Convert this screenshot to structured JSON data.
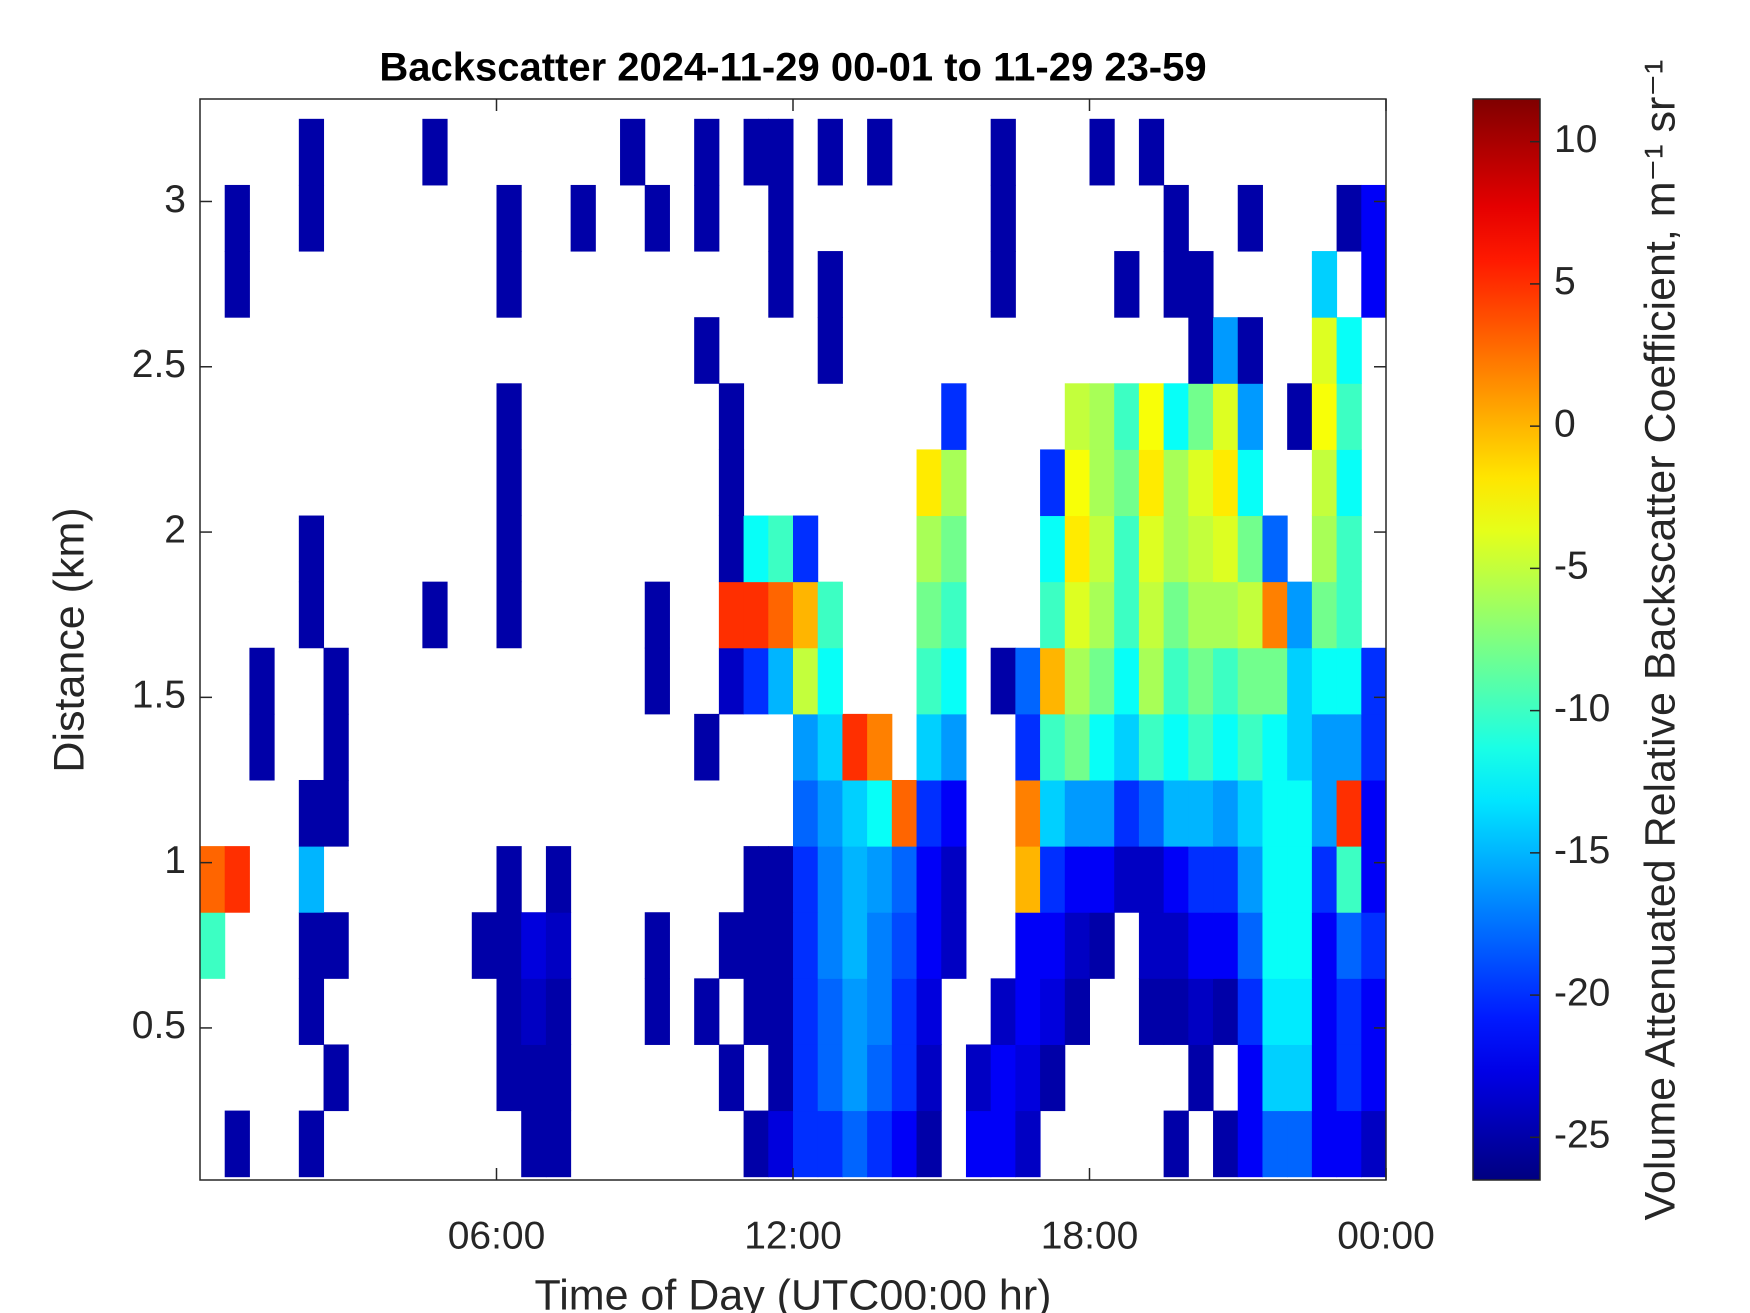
{
  "chart_data": {
    "type": "heatmap",
    "title": "Backscatter 2024-11-29 00-01 to 11-29 23-59",
    "x_label": "Time of Day (UTC00:00 hr)",
    "y_label": "Distance (km)",
    "colorbar_label": "Volume Attenuated Relative Backscatter Coefficient, m⁻¹ sr⁻¹",
    "colormap": "jet",
    "xlim": [
      0,
      24
    ],
    "xticks": [
      {
        "value": 6,
        "label": "06:00"
      },
      {
        "value": 12,
        "label": "12:00"
      },
      {
        "value": 18,
        "label": "18:00"
      },
      {
        "value": 24,
        "label": "00:00"
      }
    ],
    "ylim": [
      0.04,
      3.31
    ],
    "yticks": [
      0.5,
      1,
      1.5,
      2,
      2.5,
      3
    ],
    "zlim": [
      -26.5,
      11.5
    ],
    "zticks": [
      -25,
      -20,
      -15,
      -10,
      -5,
      0,
      5,
      10
    ],
    "x": [
      0.25,
      0.75,
      1.25,
      1.75,
      2.25,
      2.75,
      3.25,
      3.75,
      4.25,
      4.75,
      5.25,
      5.75,
      6.25,
      6.75,
      7.25,
      7.75,
      8.25,
      8.75,
      9.25,
      9.75,
      10.25,
      10.75,
      11.25,
      11.75,
      12.25,
      12.75,
      13.25,
      13.75,
      14.25,
      14.75,
      15.25,
      15.75,
      16.25,
      16.75,
      17.25,
      17.75,
      18.25,
      18.75,
      19.25,
      19.75,
      20.25,
      20.75,
      21.25,
      21.75,
      22.25,
      22.75,
      23.25,
      23.75
    ],
    "y": [
      0.15,
      0.35,
      0.55,
      0.75,
      0.95,
      1.15,
      1.35,
      1.55,
      1.75,
      1.95,
      2.15,
      2.35,
      2.55,
      2.75,
      2.95,
      3.15
    ],
    "z": [
      [
        null,
        -25,
        null,
        null,
        -25,
        null,
        null,
        null,
        null,
        null,
        null,
        null,
        null,
        -25,
        -25,
        null,
        null,
        null,
        null,
        null,
        null,
        null,
        -25,
        -23,
        -20,
        -20,
        -18,
        -20,
        -22,
        -25,
        null,
        -22,
        -22,
        -24,
        null,
        null,
        null,
        null,
        null,
        -25,
        null,
        -25,
        -22,
        -18,
        -18,
        -22,
        -22,
        -24
      ],
      [
        null,
        null,
        null,
        null,
        null,
        -25,
        null,
        null,
        null,
        null,
        null,
        null,
        -25,
        -25,
        -25,
        null,
        null,
        null,
        null,
        null,
        null,
        -25,
        null,
        -25,
        -20,
        -18,
        -16,
        -18,
        -20,
        -24,
        null,
        -24,
        -22,
        -23,
        -25,
        null,
        null,
        null,
        null,
        null,
        -25,
        null,
        -22,
        -14,
        -14,
        -22,
        -20,
        -22
      ],
      [
        null,
        null,
        null,
        null,
        -25,
        null,
        null,
        null,
        null,
        null,
        null,
        null,
        -25,
        -24,
        -25,
        null,
        null,
        null,
        -25,
        null,
        -25,
        null,
        -25,
        -25,
        -20,
        -18,
        -16,
        -17,
        -20,
        -23,
        null,
        null,
        -24,
        -22,
        -23,
        -25,
        null,
        null,
        -25,
        -25,
        -24,
        -25,
        -20,
        -13,
        -13,
        -22,
        -20,
        -22
      ],
      [
        -10,
        null,
        null,
        null,
        -25,
        -25,
        null,
        null,
        null,
        null,
        null,
        -25,
        -25,
        -23,
        -24,
        null,
        null,
        null,
        -25,
        null,
        null,
        -25,
        -25,
        -25,
        -20,
        -17,
        -15,
        -17,
        -19,
        -22,
        -24,
        null,
        null,
        -22,
        -22,
        -24,
        -25,
        null,
        -24,
        -24,
        -22,
        -22,
        -18,
        -12,
        -12,
        -22,
        -18,
        -20
      ],
      [
        3,
        5,
        null,
        null,
        -15,
        null,
        null,
        null,
        null,
        null,
        null,
        null,
        -25,
        null,
        -25,
        null,
        null,
        null,
        null,
        null,
        null,
        null,
        -25,
        -25,
        -20,
        -17,
        -15,
        -16,
        -18,
        -22,
        -24,
        null,
        null,
        0,
        -20,
        -22,
        -22,
        -24,
        -24,
        -22,
        -20,
        -20,
        -16,
        -12,
        -12,
        -20,
        -10,
        -22
      ],
      [
        null,
        null,
        null,
        null,
        -25,
        -25,
        null,
        null,
        null,
        null,
        null,
        null,
        null,
        null,
        null,
        null,
        null,
        null,
        null,
        null,
        null,
        null,
        null,
        null,
        -18,
        -16,
        -14,
        -12,
        3,
        -20,
        -22,
        null,
        null,
        2,
        -14,
        -16,
        -16,
        -20,
        -18,
        -15,
        -15,
        -16,
        -14,
        -12,
        -12,
        -16,
        5,
        -22
      ],
      [
        null,
        null,
        -25,
        null,
        null,
        -25,
        null,
        null,
        null,
        null,
        null,
        null,
        null,
        null,
        null,
        null,
        null,
        null,
        null,
        null,
        -25,
        null,
        null,
        null,
        -16,
        -14,
        5,
        2,
        null,
        -14,
        -16,
        null,
        null,
        -20,
        -10,
        -8,
        -12,
        -14,
        -10,
        -12,
        -10,
        -12,
        -10,
        -12,
        -14,
        -16,
        -16,
        -20
      ],
      [
        null,
        null,
        -25,
        null,
        null,
        -25,
        null,
        null,
        null,
        null,
        null,
        null,
        null,
        null,
        null,
        null,
        null,
        null,
        -25,
        null,
        null,
        -24,
        -20,
        -15,
        -5,
        -12,
        null,
        null,
        null,
        -10,
        -12,
        null,
        -25,
        -18,
        0,
        -6,
        -8,
        -12,
        -6,
        -10,
        -8,
        -10,
        -8,
        -8,
        -14,
        -12,
        -12,
        -20
      ],
      [
        null,
        null,
        null,
        null,
        -25,
        null,
        null,
        null,
        null,
        -25,
        null,
        null,
        -25,
        null,
        null,
        null,
        null,
        null,
        -25,
        null,
        null,
        5,
        5,
        3,
        0,
        -10,
        null,
        null,
        null,
        -8,
        -10,
        null,
        null,
        null,
        -10,
        -4,
        -6,
        -10,
        -5,
        -8,
        -6,
        -6,
        -5,
        2,
        -16,
        -8,
        -10,
        null
      ],
      [
        null,
        null,
        null,
        null,
        -25,
        null,
        null,
        null,
        null,
        null,
        null,
        null,
        -25,
        null,
        null,
        null,
        null,
        null,
        null,
        null,
        null,
        -25,
        -12,
        -10,
        -20,
        null,
        null,
        null,
        null,
        -6,
        -8,
        null,
        null,
        null,
        -12,
        -2,
        -5,
        -10,
        -4,
        -6,
        -5,
        -4,
        -8,
        -18,
        null,
        -6,
        -10,
        null
      ],
      [
        null,
        null,
        null,
        null,
        null,
        null,
        null,
        null,
        null,
        null,
        null,
        null,
        -25,
        null,
        null,
        null,
        null,
        null,
        null,
        null,
        null,
        -25,
        null,
        null,
        null,
        null,
        null,
        null,
        null,
        -2,
        -6,
        null,
        null,
        null,
        -20,
        -3,
        -6,
        -8,
        -2,
        -6,
        -4,
        -2,
        -12,
        null,
        null,
        -5,
        -12,
        null
      ],
      [
        null,
        null,
        null,
        null,
        null,
        null,
        null,
        null,
        null,
        null,
        null,
        null,
        -25,
        null,
        null,
        null,
        null,
        null,
        null,
        null,
        null,
        -25,
        null,
        null,
        null,
        null,
        null,
        null,
        null,
        null,
        -20,
        null,
        null,
        null,
        null,
        -5,
        -6,
        -10,
        -3,
        -12,
        -8,
        -4,
        -16,
        null,
        -25,
        -3,
        -10,
        null
      ],
      [
        null,
        null,
        null,
        null,
        null,
        null,
        null,
        null,
        null,
        null,
        null,
        null,
        null,
        null,
        null,
        null,
        null,
        null,
        null,
        null,
        -25,
        null,
        null,
        null,
        null,
        -25,
        null,
        null,
        null,
        null,
        null,
        null,
        null,
        null,
        null,
        null,
        null,
        null,
        null,
        null,
        -25,
        -16,
        -25,
        null,
        null,
        -4,
        -12,
        null
      ],
      [
        null,
        -25,
        null,
        null,
        null,
        null,
        null,
        null,
        null,
        null,
        null,
        null,
        -25,
        null,
        null,
        null,
        null,
        null,
        null,
        null,
        null,
        null,
        null,
        -25,
        null,
        -25,
        null,
        null,
        null,
        null,
        null,
        null,
        -25,
        null,
        null,
        null,
        null,
        -25,
        null,
        -25,
        -25,
        null,
        null,
        null,
        null,
        -14,
        null,
        -22
      ],
      [
        null,
        -25,
        null,
        null,
        -25,
        null,
        null,
        null,
        null,
        null,
        null,
        null,
        -25,
        null,
        null,
        -25,
        null,
        null,
        -25,
        null,
        -25,
        null,
        null,
        -25,
        null,
        null,
        null,
        null,
        null,
        null,
        null,
        null,
        -25,
        null,
        null,
        null,
        null,
        null,
        null,
        -25,
        null,
        null,
        -25,
        null,
        null,
        null,
        -25,
        -22
      ],
      [
        null,
        null,
        null,
        null,
        -25,
        null,
        null,
        null,
        null,
        -25,
        null,
        null,
        null,
        null,
        null,
        null,
        null,
        -25,
        null,
        null,
        -25,
        null,
        -25,
        -25,
        null,
        -25,
        null,
        -25,
        null,
        null,
        null,
        null,
        -25,
        null,
        null,
        null,
        -25,
        null,
        -25,
        null,
        null,
        null,
        null,
        null,
        null,
        null,
        null,
        null
      ]
    ]
  }
}
